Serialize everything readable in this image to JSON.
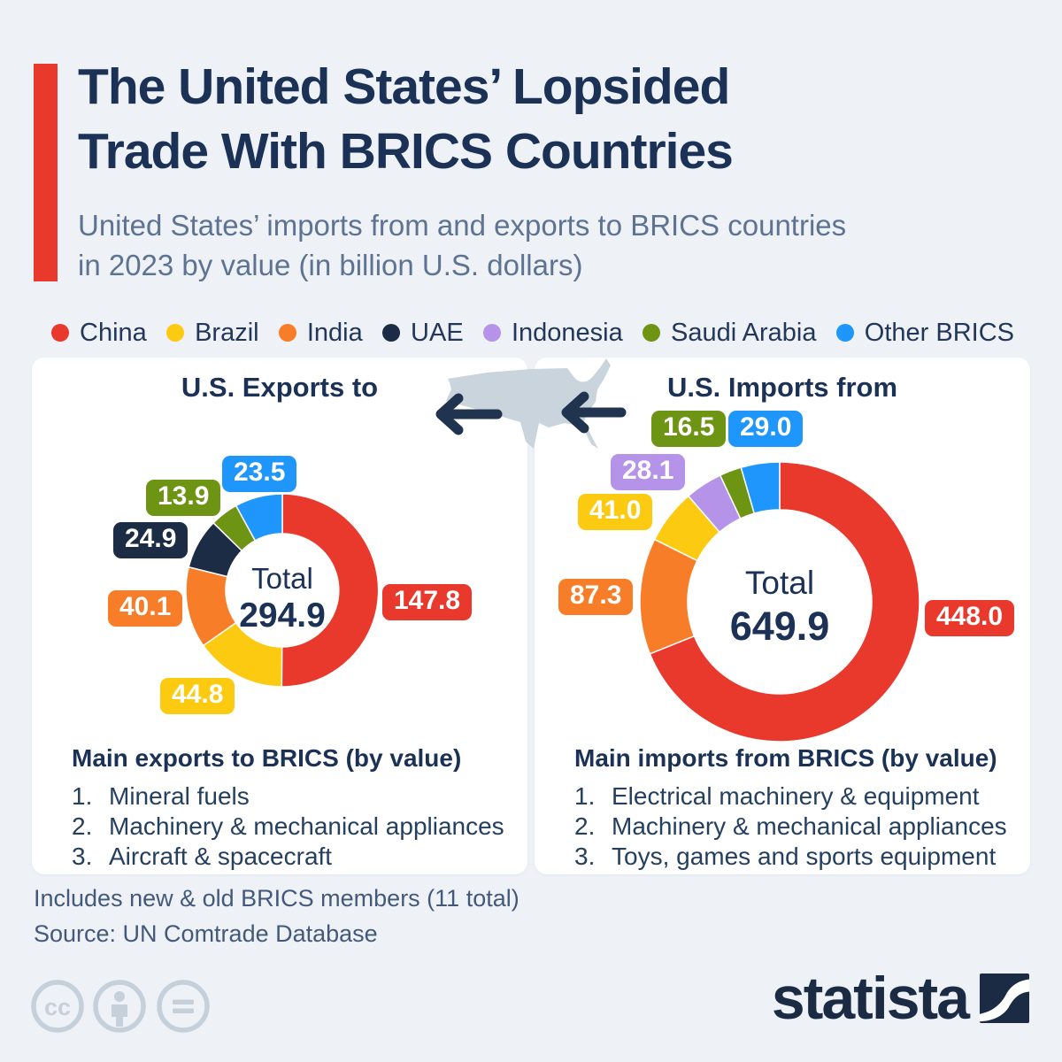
{
  "header": {
    "title_line1": "The United States’ Lopsided",
    "title_line2": "Trade With BRICS Countries",
    "subtitle_line1": "United States’ imports from and exports to BRICS countries",
    "subtitle_line2": "in 2023 by value (in billion U.S. dollars)"
  },
  "palette": {
    "red": "#e8392c",
    "yellow": "#fdca12",
    "orange": "#f87d28",
    "navy": "#1b2c44",
    "purple": "#b493e9",
    "green": "#6d9413",
    "blue": "#1e96fb",
    "background": "#eef2f7",
    "card": "#ffffff",
    "title_text": "#1b3156",
    "subtitle_text": "#5d7391",
    "map_gray": "#c9d4dd",
    "arrow_navy": "#20344f",
    "footer_text": "#44597a",
    "cc_gray": "#c6d0db"
  },
  "legend": [
    {
      "label": "China",
      "color": "red"
    },
    {
      "label": "Brazil",
      "color": "yellow"
    },
    {
      "label": "India",
      "color": "orange"
    },
    {
      "label": "UAE",
      "color": "navy"
    },
    {
      "label": "Indonesia",
      "color": "purple"
    },
    {
      "label": "Saudi Arabia",
      "color": "green"
    },
    {
      "label": "Other BRICS",
      "color": "blue"
    }
  ],
  "chart_data": [
    {
      "type": "pie",
      "variant": "donut",
      "title": "U.S. Exports to",
      "center_label": "Total",
      "total": 294.9,
      "total_label": "294.9",
      "categories": [
        "China",
        "Brazil",
        "India",
        "UAE",
        "Saudi Arabia",
        "Other BRICS"
      ],
      "values": [
        147.8,
        44.8,
        40.1,
        24.9,
        13.9,
        23.5
      ],
      "value_labels": [
        "147.8",
        "44.8",
        "40.1",
        "24.9",
        "13.9",
        "23.5"
      ],
      "colors": [
        "red",
        "yellow",
        "orange",
        "navy",
        "green",
        "blue"
      ],
      "start_angle_deg": 0,
      "direction": "clockwise"
    },
    {
      "type": "pie",
      "variant": "donut",
      "title": "U.S. Imports from",
      "center_label": "Total",
      "total": 649.9,
      "total_label": "649.9",
      "categories": [
        "China",
        "India",
        "Brazil",
        "Indonesia",
        "Saudi Arabia",
        "Other BRICS"
      ],
      "values": [
        448.0,
        87.3,
        41.0,
        28.1,
        16.5,
        29.0
      ],
      "value_labels": [
        "448.0",
        "87.3",
        "41.0",
        "28.1",
        "16.5",
        "29.0"
      ],
      "colors": [
        "red",
        "orange",
        "yellow",
        "purple",
        "green",
        "blue"
      ],
      "start_angle_deg": 0,
      "direction": "clockwise"
    }
  ],
  "lists": {
    "exports": {
      "heading": "Main exports to BRICS (by value)",
      "items": [
        "Mineral fuels",
        "Machinery & mechanical appliances",
        "Aircraft & spacecraft"
      ]
    },
    "imports": {
      "heading": "Main imports from BRICS (by value)",
      "items": [
        "Electrical machinery & equipment",
        "Machinery & mechanical appliances",
        "Toys, games and sports equipment"
      ]
    }
  },
  "footer": {
    "note": "Includes new & old BRICS members (11 total)",
    "source": "Source: UN Comtrade Database",
    "brand": "statista"
  }
}
